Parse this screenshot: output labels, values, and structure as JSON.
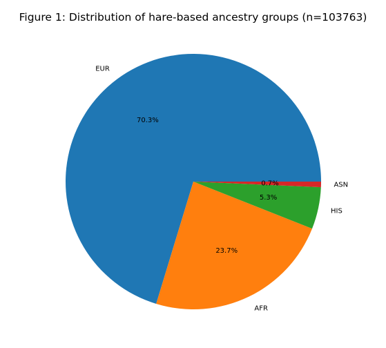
{
  "chart_data": {
    "type": "pie",
    "title": "Figure 1: Distribution of hare-based ancestry groups (n=103763)",
    "slices": [
      {
        "label": "EUR",
        "percent": 70.3,
        "pct_label": "70.3%",
        "color": "#1f77b4"
      },
      {
        "label": "AFR",
        "percent": 23.7,
        "pct_label": "23.7%",
        "color": "#ff7f0e"
      },
      {
        "label": "HIS",
        "percent": 5.3,
        "pct_label": "5.3%",
        "color": "#2ca02c"
      },
      {
        "label": "ASN",
        "percent": 0.7,
        "pct_label": "0.7%",
        "color": "#d62728"
      }
    ],
    "start_angle": 0,
    "direction": "counterclockwise",
    "legend": "none"
  }
}
